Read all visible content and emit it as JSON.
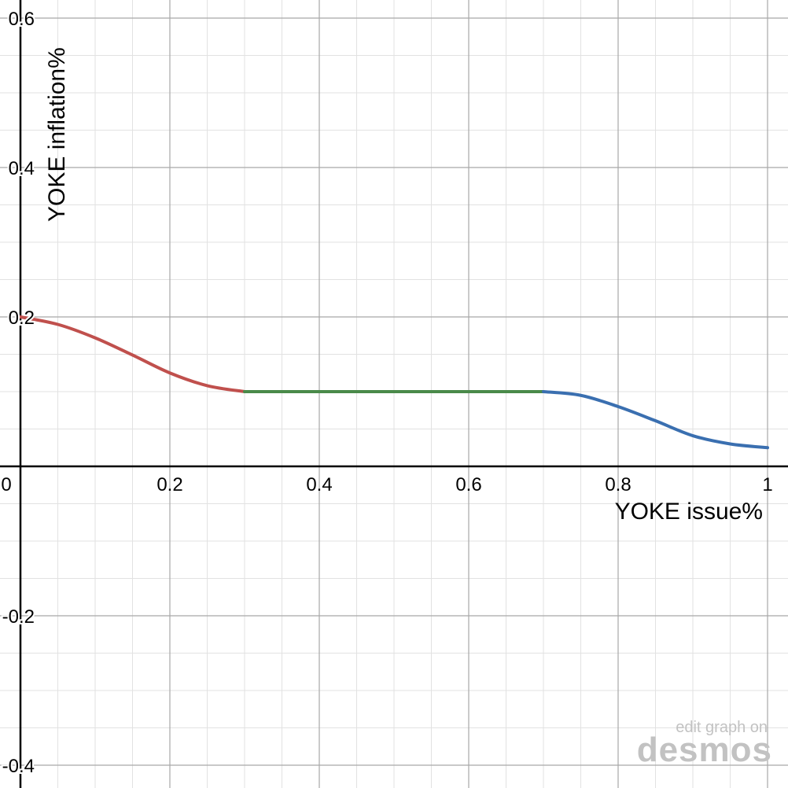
{
  "chart_data": {
    "type": "line",
    "xlabel": "YOKE issue%",
    "ylabel": "YOKE inflation%",
    "xlim": [
      0,
      1.0
    ],
    "ylim": [
      -0.4,
      0.6
    ],
    "x_ticks": [
      0,
      0.2,
      0.4,
      0.6,
      0.8,
      1
    ],
    "x_tick_labels": [
      "0",
      "0.2",
      "0.4",
      "0.6",
      "0.8",
      "1"
    ],
    "y_ticks": [
      0.6,
      0.4,
      0.2,
      -0.2,
      -0.4
    ],
    "y_tick_labels": [
      "0.6",
      "0.4",
      "0.2",
      "-0.2",
      "-0.4"
    ],
    "grid": true,
    "series": [
      {
        "color": "#c0504d",
        "x": [
          0,
          0.05,
          0.1,
          0.15,
          0.2,
          0.25,
          0.3
        ],
        "y": [
          0.2,
          0.19,
          0.172,
          0.149,
          0.125,
          0.108,
          0.1
        ]
      },
      {
        "color": "#4a8a4a",
        "x": [
          0.3,
          0.4,
          0.5,
          0.6,
          0.7
        ],
        "y": [
          0.1,
          0.1,
          0.1,
          0.1,
          0.1
        ]
      },
      {
        "color": "#3a6fb0",
        "x": [
          0.7,
          0.75,
          0.8,
          0.85,
          0.9,
          0.95,
          1.0
        ],
        "y": [
          0.1,
          0.095,
          0.08,
          0.061,
          0.041,
          0.03,
          0.025
        ]
      }
    ]
  },
  "watermark": {
    "line1": "edit graph on",
    "line2": "desmos"
  }
}
